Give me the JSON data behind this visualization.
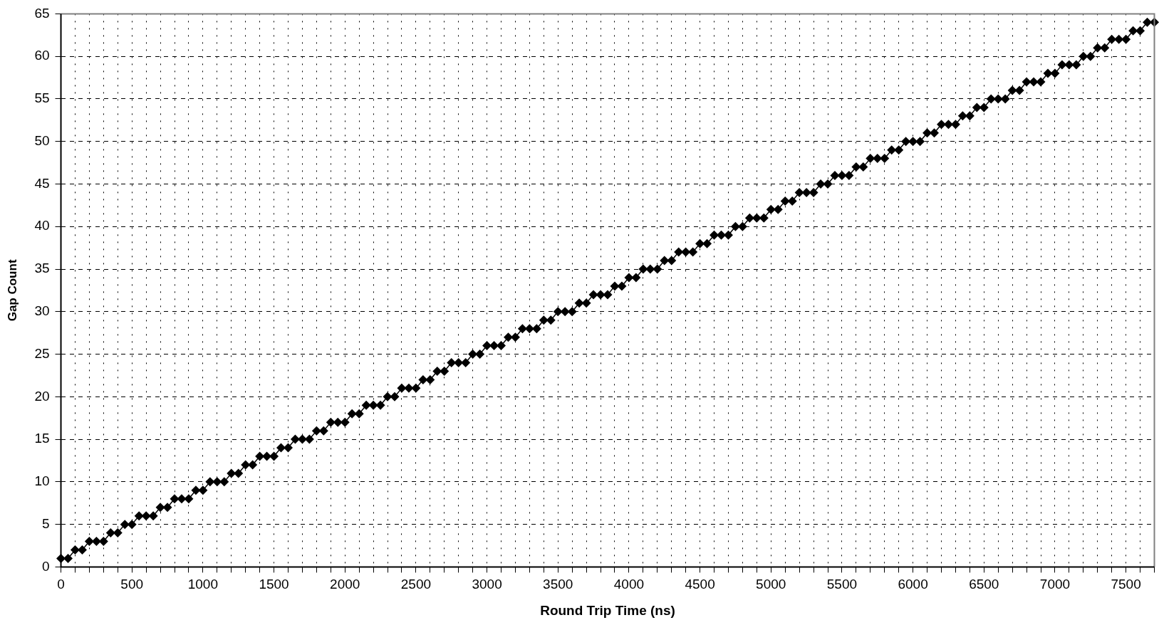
{
  "chart_data": {
    "type": "line",
    "xlabel": "Round Trip Time (ns)",
    "ylabel": "Gap Count",
    "x": [
      0,
      50,
      100,
      150,
      200,
      250,
      300,
      350,
      400,
      450,
      500,
      550,
      600,
      650,
      700,
      750,
      800,
      850,
      900,
      950,
      1000,
      1050,
      1100,
      1150,
      1200,
      1250,
      1300,
      1350,
      1400,
      1450,
      1500,
      1550,
      1600,
      1650,
      1700,
      1750,
      1800,
      1850,
      1900,
      1950,
      2000,
      2050,
      2100,
      2150,
      2200,
      2250,
      2300,
      2350,
      2400,
      2450,
      2500,
      2550,
      2600,
      2650,
      2700,
      2750,
      2800,
      2850,
      2900,
      2950,
      3000,
      3050,
      3100,
      3150,
      3200,
      3250,
      3300,
      3350,
      3400,
      3450,
      3500,
      3550,
      3600,
      3650,
      3700,
      3750,
      3800,
      3850,
      3900,
      3950,
      4000,
      4050,
      4100,
      4150,
      4200,
      4250,
      4300,
      4350,
      4400,
      4450,
      4500,
      4550,
      4600,
      4650,
      4700,
      4750,
      4800,
      4850,
      4900,
      4950,
      5000,
      5050,
      5100,
      5150,
      5200,
      5250,
      5300,
      5350,
      5400,
      5450,
      5500,
      5550,
      5600,
      5650,
      5700,
      5750,
      5800,
      5850,
      5900,
      5950,
      6000,
      6050,
      6100,
      6150,
      6200,
      6250,
      6300,
      6350,
      6400,
      6450,
      6500,
      6550,
      6600,
      6650,
      6700,
      6750,
      6800,
      6850,
      6900,
      6950,
      7000,
      7050,
      7100,
      7150,
      7200,
      7250,
      7300,
      7350,
      7400,
      7450,
      7500,
      7550,
      7600,
      7650,
      7700
    ],
    "series": [
      {
        "color": "#000000",
        "values": [
          1,
          1,
          2,
          2,
          3,
          3,
          3,
          4,
          4,
          5,
          5,
          6,
          6,
          6,
          7,
          7,
          8,
          8,
          8,
          9,
          9,
          10,
          10,
          10,
          11,
          11,
          12,
          12,
          13,
          13,
          13,
          14,
          14,
          15,
          15,
          15,
          16,
          16,
          17,
          17,
          17,
          18,
          18,
          19,
          19,
          19,
          20,
          20,
          21,
          21,
          21,
          22,
          22,
          23,
          23,
          24,
          24,
          24,
          25,
          25,
          26,
          26,
          26,
          27,
          27,
          28,
          28,
          28,
          29,
          29,
          30,
          30,
          30,
          31,
          31,
          32,
          32,
          32,
          33,
          33,
          34,
          34,
          35,
          35,
          35,
          36,
          36,
          37,
          37,
          37,
          38,
          38,
          39,
          39,
          39,
          40,
          40,
          41,
          41,
          41,
          42,
          42,
          43,
          43,
          44,
          44,
          44,
          45,
          45,
          46,
          46,
          46,
          47,
          47,
          48,
          48,
          48,
          49,
          49,
          50,
          50,
          50,
          51,
          51,
          52,
          52,
          52,
          53,
          53,
          54,
          54,
          55,
          55,
          55,
          56,
          56,
          57,
          57,
          57,
          58,
          58,
          59,
          59,
          59,
          60,
          60,
          61,
          61,
          62,
          62,
          62,
          63,
          63,
          64,
          64
        ]
      }
    ],
    "xlim": [
      0,
      7700
    ],
    "xticks": [
      0,
      {
        "value": 100,
        "label": null
      },
      {
        "value": 200,
        "label": null
      },
      {
        "value": 300,
        "label": null
      },
      {
        "value": 400,
        "label": null
      },
      500,
      {
        "value": 600,
        "label": null
      },
      {
        "value": 700,
        "label": null
      },
      {
        "value": 800,
        "label": null
      },
      {
        "value": 900,
        "label": null
      },
      1000,
      {
        "value": 1100,
        "label": null
      },
      {
        "value": 1200,
        "label": null
      },
      {
        "value": 1300,
        "label": null
      },
      {
        "value": 1400,
        "label": null
      },
      1500,
      {
        "value": 1600,
        "label": null
      },
      {
        "value": 1700,
        "label": null
      },
      {
        "value": 1800,
        "label": null
      },
      {
        "value": 1900,
        "label": null
      },
      2000,
      {
        "value": 2100,
        "label": null
      },
      {
        "value": 2200,
        "label": null
      },
      {
        "value": 2300,
        "label": null
      },
      {
        "value": 2400,
        "label": null
      },
      2500,
      {
        "value": 2600,
        "label": null
      },
      {
        "value": 2700,
        "label": null
      },
      {
        "value": 2800,
        "label": null
      },
      {
        "value": 2900,
        "label": null
      },
      3000,
      {
        "value": 3100,
        "label": null
      },
      {
        "value": 3200,
        "label": null
      },
      {
        "value": 3300,
        "label": null
      },
      {
        "value": 3400,
        "label": null
      },
      3500,
      {
        "value": 3600,
        "label": null
      },
      {
        "value": 3700,
        "label": null
      },
      {
        "value": 3800,
        "label": null
      },
      {
        "value": 3900,
        "label": null
      },
      4000,
      {
        "value": 4100,
        "label": null
      },
      {
        "value": 4200,
        "label": null
      },
      {
        "value": 4300,
        "label": null
      },
      {
        "value": 4400,
        "label": null
      },
      4500,
      {
        "value": 4600,
        "label": null
      },
      {
        "value": 4700,
        "label": null
      },
      {
        "value": 4800,
        "label": null
      },
      {
        "value": 4900,
        "label": null
      },
      5000,
      {
        "value": 5100,
        "label": null
      },
      {
        "value": 5200,
        "label": null
      },
      {
        "value": 5300,
        "label": null
      },
      {
        "value": 5400,
        "label": null
      },
      5500,
      {
        "value": 5600,
        "label": null
      },
      {
        "value": 5700,
        "label": null
      },
      {
        "value": 5800,
        "label": null
      },
      {
        "value": 5900,
        "label": null
      },
      6000,
      {
        "value": 6100,
        "label": null
      },
      {
        "value": 6200,
        "label": null
      },
      {
        "value": 6300,
        "label": null
      },
      {
        "value": 6400,
        "label": null
      },
      6500,
      {
        "value": 6600,
        "label": null
      },
      {
        "value": 6700,
        "label": null
      },
      {
        "value": 6800,
        "label": null
      },
      {
        "value": 6900,
        "label": null
      },
      7000,
      {
        "value": 7100,
        "label": null
      },
      {
        "value": 7200,
        "label": null
      },
      {
        "value": 7300,
        "label": null
      },
      {
        "value": 7400,
        "label": null
      },
      7500,
      {
        "value": 7600,
        "label": null
      },
      {
        "value": 7700,
        "label": null
      }
    ],
    "ylim": [
      0,
      65
    ],
    "yticks": [
      0,
      5,
      10,
      15,
      20,
      25,
      30,
      35,
      40,
      45,
      50,
      55,
      60,
      65
    ],
    "grid": true,
    "legend": false,
    "marker": "diamond",
    "line_style": "solid"
  }
}
